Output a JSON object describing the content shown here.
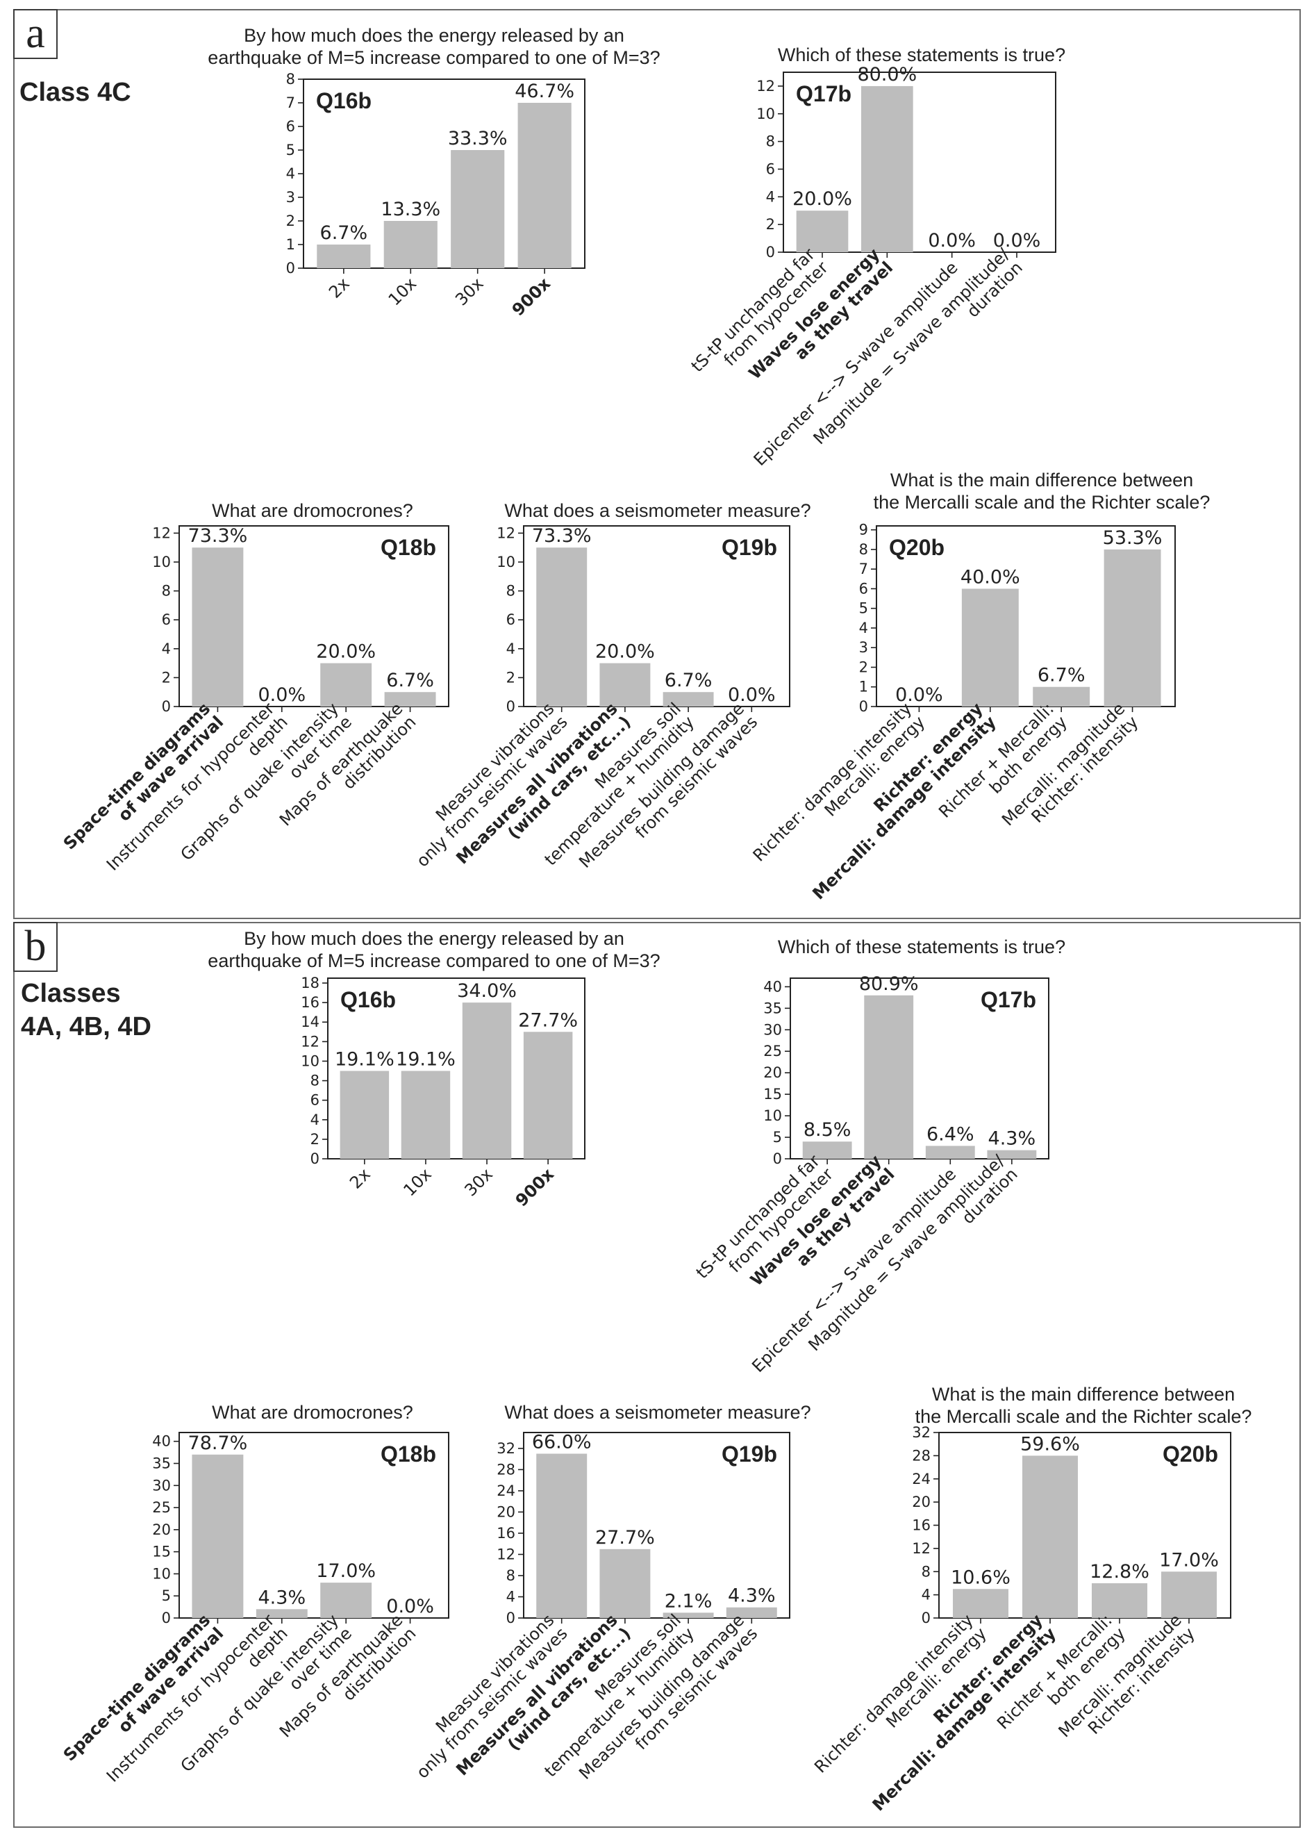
{
  "panels": [
    {
      "letter": "a",
      "class_label": [
        "Class 4C"
      ]
    },
    {
      "letter": "b",
      "class_label": [
        "Classes",
        "4A, 4B, 4D"
      ]
    }
  ],
  "chart_data": [
    {
      "id": "a-Q16b",
      "type": "bar",
      "question": "Q16b",
      "title": [
        "By how much does the energy released by an",
        "earthquake of M=5 increase compared to one of M=3?"
      ],
      "categories": [
        [
          "2x"
        ],
        [
          "10x"
        ],
        [
          "30x"
        ],
        [
          "900x"
        ]
      ],
      "correct_index": 3,
      "values": [
        1,
        2,
        5,
        7
      ],
      "labels": [
        "6.7%",
        "13.3%",
        "33.3%",
        "46.7%"
      ],
      "ylim": [
        0,
        8
      ],
      "yticks": [
        0,
        1,
        2,
        3,
        4,
        5,
        6,
        7,
        8
      ]
    },
    {
      "id": "a-Q17b",
      "type": "bar",
      "question": "Q17b",
      "title": [
        "Which of these statements is true?"
      ],
      "categories": [
        [
          "tS-tP unchanged far",
          "from hypocenter"
        ],
        [
          "Waves lose energy",
          "as they travel"
        ],
        [
          "Epicenter <--> S-wave amplitude"
        ],
        [
          "Magnitude = S-wave amplitude/",
          "duration"
        ]
      ],
      "correct_index": 1,
      "values": [
        3,
        12,
        0,
        0
      ],
      "labels": [
        "20.0%",
        "80.0%",
        "0.0%",
        "0.0%"
      ],
      "ylim": [
        0,
        13
      ],
      "yticks": [
        0,
        2,
        4,
        6,
        8,
        10,
        12
      ]
    },
    {
      "id": "a-Q18b",
      "type": "bar",
      "question": "Q18b",
      "title": [
        "What are dromocrones?"
      ],
      "categories": [
        [
          "Space-time diagrams",
          "of wave arrival"
        ],
        [
          "Instruments for hypocenter",
          "depth"
        ],
        [
          "Graphs of quake intensity",
          "over time"
        ],
        [
          "Maps of earthquake",
          "distribution"
        ]
      ],
      "correct_index": 0,
      "values": [
        11,
        0,
        3,
        1
      ],
      "labels": [
        "73.3%",
        "0.0%",
        "20.0%",
        "6.7%"
      ],
      "ylim": [
        0,
        12.5
      ],
      "yticks": [
        0,
        2,
        4,
        6,
        8,
        10,
        12
      ]
    },
    {
      "id": "a-Q19b",
      "type": "bar",
      "question": "Q19b",
      "title": [
        "What does a seismometer measure?"
      ],
      "categories": [
        [
          "Measure vibrations",
          "only from seismic waves"
        ],
        [
          "Measures all vibrations",
          "(wind cars, etc...)"
        ],
        [
          "Measures soil",
          "temperature + humidity"
        ],
        [
          "Measures building damage",
          "from seismic waves"
        ]
      ],
      "correct_index": 1,
      "values": [
        11,
        3,
        1,
        0
      ],
      "labels": [
        "73.3%",
        "20.0%",
        "6.7%",
        "0.0%"
      ],
      "ylim": [
        0,
        12.5
      ],
      "yticks": [
        0,
        2,
        4,
        6,
        8,
        10,
        12
      ]
    },
    {
      "id": "a-Q20b",
      "type": "bar",
      "question": "Q20b",
      "title": [
        "What is the main difference between",
        "the Mercalli scale and the Richter scale?"
      ],
      "categories": [
        [
          "Richter: damage intensity",
          "Mercalli: energy"
        ],
        [
          "Richter: energy",
          "Mercalli: damage intensity"
        ],
        [
          "Richter + Mercalli:",
          "both energy"
        ],
        [
          "Mercalli: magnitude",
          "Richter: intensity"
        ]
      ],
      "correct_index": 1,
      "values": [
        0,
        6,
        1,
        8
      ],
      "labels": [
        "0.0%",
        "40.0%",
        "6.7%",
        "53.3%"
      ],
      "ylim": [
        0,
        9.2
      ],
      "yticks": [
        0,
        1,
        2,
        3,
        4,
        5,
        6,
        7,
        8,
        9
      ]
    },
    {
      "id": "b-Q16b",
      "type": "bar",
      "question": "Q16b",
      "title": [
        "By how much does the energy released by an",
        "earthquake of M=5 increase compared to one of M=3?"
      ],
      "categories": [
        [
          "2x"
        ],
        [
          "10x"
        ],
        [
          "30x"
        ],
        [
          "900x"
        ]
      ],
      "correct_index": 3,
      "values": [
        9,
        9,
        16,
        13
      ],
      "labels": [
        "19.1%",
        "19.1%",
        "34.0%",
        "27.7%"
      ],
      "ylim": [
        0,
        18.5
      ],
      "yticks": [
        0,
        2,
        4,
        6,
        8,
        10,
        12,
        14,
        16,
        18
      ]
    },
    {
      "id": "b-Q17b",
      "type": "bar",
      "question": "Q17b",
      "title": [
        "Which of these statements is true?"
      ],
      "categories": [
        [
          "tS-tP unchanged far",
          "from hypocenter"
        ],
        [
          "Waves lose energy",
          "as they travel"
        ],
        [
          "Epicenter <--> S-wave amplitude"
        ],
        [
          "Magnitude = S-wave amplitude/",
          "duration"
        ]
      ],
      "correct_index": 1,
      "values": [
        4,
        38,
        3,
        2
      ],
      "labels": [
        "8.5%",
        "80.9%",
        "6.4%",
        "4.3%"
      ],
      "ylim": [
        0,
        42
      ],
      "yticks": [
        0,
        5,
        10,
        15,
        20,
        25,
        30,
        35,
        40
      ]
    },
    {
      "id": "b-Q18b",
      "type": "bar",
      "question": "Q18b",
      "title": [
        "What are dromocrones?"
      ],
      "categories": [
        [
          "Space-time diagrams",
          "of wave arrival"
        ],
        [
          "Instruments for hypocenter",
          "depth"
        ],
        [
          "Graphs of quake intensity",
          "over time"
        ],
        [
          "Maps of earthquake",
          "distribution"
        ]
      ],
      "correct_index": 0,
      "values": [
        37,
        2,
        8,
        0
      ],
      "labels": [
        "78.7%",
        "4.3%",
        "17.0%",
        "0.0%"
      ],
      "ylim": [
        0,
        42
      ],
      "yticks": [
        0,
        5,
        10,
        15,
        20,
        25,
        30,
        35,
        40
      ]
    },
    {
      "id": "b-Q19b",
      "type": "bar",
      "question": "Q19b",
      "title": [
        "What does a seismometer measure?"
      ],
      "categories": [
        [
          "Measure vibrations",
          "only from seismic waves"
        ],
        [
          "Measures all vibrations",
          "(wind cars, etc...)"
        ],
        [
          "Measures soil",
          "temperature + humidity"
        ],
        [
          "Measures building damage",
          "from seismic waves"
        ]
      ],
      "correct_index": 1,
      "values": [
        31,
        13,
        1,
        2
      ],
      "labels": [
        "66.0%",
        "27.7%",
        "2.1%",
        "4.3%"
      ],
      "ylim": [
        0,
        35
      ],
      "yticks": [
        0,
        4,
        8,
        12,
        16,
        20,
        24,
        28,
        32
      ]
    },
    {
      "id": "b-Q20b",
      "type": "bar",
      "question": "Q20b",
      "title": [
        "What is the main difference between",
        "the Mercalli scale and the Richter scale?"
      ],
      "categories": [
        [
          "Richter: damage intensity",
          "Mercalli: energy"
        ],
        [
          "Richter: energy",
          "Mercalli: damage intensity"
        ],
        [
          "Richter + Mercalli:",
          "both energy"
        ],
        [
          "Mercalli: magnitude",
          "Richter: intensity"
        ]
      ],
      "correct_index": 1,
      "values": [
        5,
        28,
        6,
        8
      ],
      "labels": [
        "10.6%",
        "59.6%",
        "12.8%",
        "17.0%"
      ],
      "ylim": [
        0,
        32
      ],
      "yticks": [
        0,
        4,
        8,
        12,
        16,
        20,
        24,
        28,
        32
      ]
    }
  ],
  "colors": {
    "bar": "#bdbdbd",
    "frame": "#222222",
    "panel_frame": "#6a6a6a"
  }
}
